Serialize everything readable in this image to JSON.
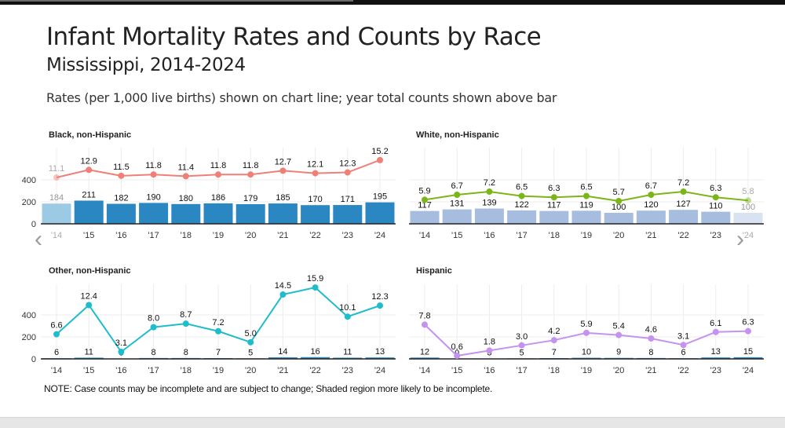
{
  "header": {
    "title": "Infant Mortality Rates and Counts by Race",
    "subtitle": "Mississippi, 2014-2024",
    "caption": "Rates (per 1,000 live births) shown on chart line; year total counts shown above bar"
  },
  "note": "NOTE: Case counts may be incomplete and are subject to change; Shaded region more likely to be incomplete.",
  "nav": {
    "prev_icon": "chevron-left-icon",
    "next_icon": "chevron-right-icon"
  },
  "chart_data": [
    {
      "type": "bar+line",
      "title": "Black, non-Hispanic",
      "categories": [
        "'14",
        "'15",
        "'16",
        "'17",
        "'18",
        "'19",
        "'20",
        "'21",
        "'22",
        "'23",
        "'24"
      ],
      "counts": [
        184,
        211,
        182,
        190,
        180,
        186,
        179,
        185,
        170,
        171,
        195
      ],
      "rates": [
        11.1,
        12.9,
        11.5,
        11.8,
        11.4,
        11.8,
        11.8,
        12.7,
        12.1,
        12.3,
        15.2
      ],
      "rate_labels": [
        "11.1",
        "12.9",
        "11.5",
        "11.8",
        "11.4",
        "11.8",
        "11.8",
        "12.7",
        "12.1",
        "12.3",
        "15.2"
      ],
      "ylim": [
        0,
        400
      ],
      "yticks": [
        "0",
        "200",
        "400"
      ],
      "bar_color": "#2b87c2",
      "bar_shaded_color": "#9ccae5",
      "line_color": "#f07f77",
      "shaded_years": [
        "'14"
      ]
    },
    {
      "type": "bar+line",
      "title": "White, non-Hispanic",
      "categories": [
        "'14",
        "'15",
        "'16",
        "'17",
        "'18",
        "'19",
        "'20",
        "'21",
        "'22",
        "'23",
        "'24"
      ],
      "counts": [
        117,
        131,
        139,
        122,
        117,
        119,
        100,
        120,
        127,
        110,
        100
      ],
      "rates": [
        5.9,
        6.7,
        7.2,
        6.5,
        6.3,
        6.5,
        5.7,
        6.7,
        7.2,
        6.3,
        5.8
      ],
      "rate_labels": [
        "5.9",
        "6.7",
        "7.2",
        "6.5",
        "6.3",
        "6.5",
        "5.7",
        "6.7",
        "7.2",
        "6.3",
        "5.8"
      ],
      "ylim": [
        0,
        400
      ],
      "yticks": [
        "0",
        "200",
        "400"
      ],
      "bar_color": "#a6bde0",
      "bar_shaded_color": "#d8e2f1",
      "line_color": "#7cb518",
      "shaded_years": [
        "'24"
      ]
    },
    {
      "type": "bar+line",
      "title": "Other, non-Hispanic",
      "categories": [
        "'14",
        "'15",
        "'16",
        "'17",
        "'18",
        "'19",
        "'20",
        "'21",
        "'22",
        "'23",
        "'24"
      ],
      "counts": [
        6,
        11,
        3,
        8,
        8,
        7,
        5,
        14,
        16,
        11,
        13
      ],
      "rates": [
        6.6,
        12.4,
        3.1,
        8.0,
        8.7,
        7.2,
        5.0,
        14.5,
        15.9,
        10.1,
        12.3
      ],
      "rate_labels": [
        "6.6",
        "12.4",
        "3.1",
        "8.0",
        "8.7",
        "7.2",
        "5.0",
        "14.5",
        "15.9",
        "10.1",
        "12.3"
      ],
      "ylim": [
        0,
        400
      ],
      "yticks": [
        "0",
        "200",
        "400"
      ],
      "bar_color": "#2b87c2",
      "bar_shaded_color": "#9ccae5",
      "line_color": "#1fbccc",
      "shaded_years": []
    },
    {
      "type": "bar+line",
      "title": "Hispanic",
      "categories": [
        "'14",
        "'15",
        "'16",
        "'17",
        "'18",
        "'19",
        "'20",
        "'21",
        "'22",
        "'23",
        "'24"
      ],
      "counts": [
        12,
        0,
        3,
        5,
        7,
        10,
        9,
        8,
        6,
        13,
        15
      ],
      "count_labels": [
        "12",
        "0",
        "3",
        "5",
        "7",
        "10",
        "9",
        "8",
        "6",
        "13",
        "15"
      ],
      "rates": [
        7.8,
        0.6,
        1.8,
        3.0,
        4.2,
        5.9,
        5.4,
        4.6,
        3.1,
        6.1,
        6.3
      ],
      "rate_labels": [
        "7.8",
        "0.6",
        "1.8",
        "3.0",
        "4.2",
        "5.9",
        "5.4",
        "4.6",
        "3.1",
        "6.1",
        "6.3"
      ],
      "ylim": [
        0,
        400
      ],
      "yticks": [
        "0",
        "200",
        "400"
      ],
      "bar_color": "#2b87c2",
      "bar_shaded_color": "#9ccae5",
      "line_color": "#c493f0",
      "shaded_years": []
    }
  ]
}
